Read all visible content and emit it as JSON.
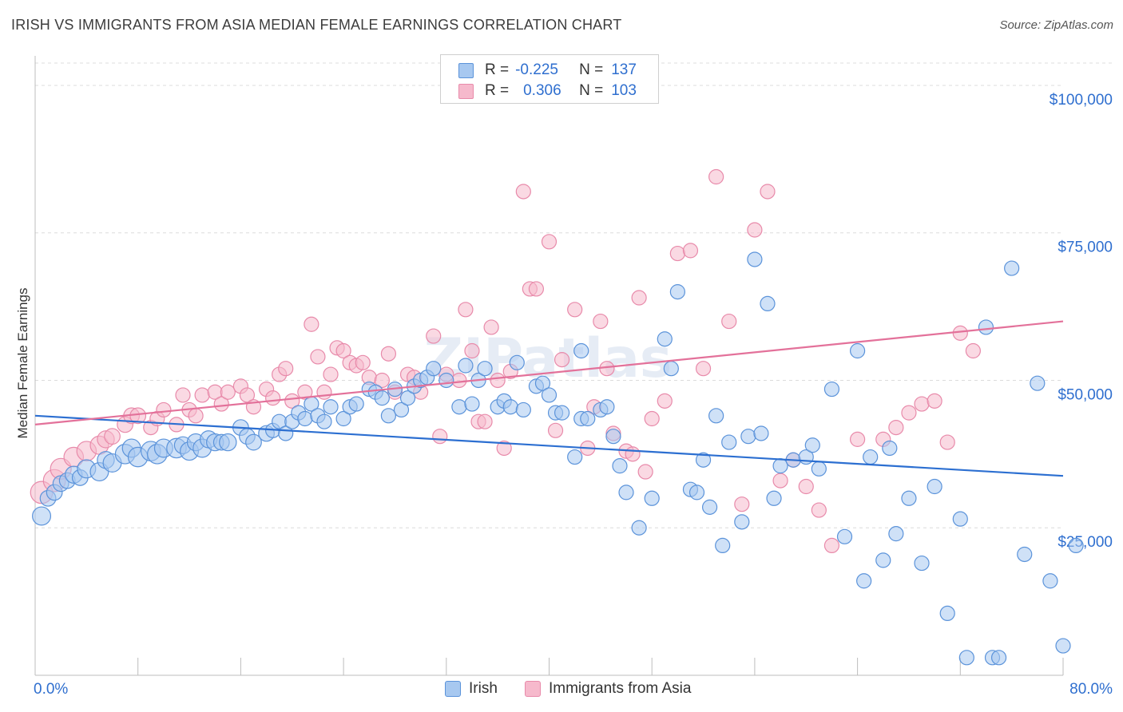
{
  "header": {
    "title": "IRISH VS IMMIGRANTS FROM ASIA MEDIAN FEMALE EARNINGS CORRELATION CHART",
    "source": "Source: ZipAtlas.com"
  },
  "colors": {
    "irish_fill": "#a7c8f0",
    "irish_stroke": "#5b93da",
    "irish_line": "#2c6fd1",
    "asia_fill": "#f6b9cc",
    "asia_stroke": "#e88aaa",
    "asia_line": "#e3719a",
    "axis_label": "#2f6fcf",
    "grid": "#dcdcdc"
  },
  "stats_legend": {
    "rows": [
      {
        "r_label": "R =",
        "r_value": "-0.225",
        "n_label": "N =",
        "n_value": "137"
      },
      {
        "r_label": "R =",
        "r_value": "0.306",
        "n_label": "N =",
        "n_value": "103"
      }
    ]
  },
  "chart_data": {
    "type": "scatter",
    "title": "IRISH VS IMMIGRANTS FROM ASIA MEDIAN FEMALE EARNINGS CORRELATION CHART",
    "ylabel": "Median Female Earnings",
    "xlabel": "",
    "xlim": [
      0,
      80
    ],
    "ylim": [
      0,
      105000
    ],
    "x_tick_labels": [
      "0.0%",
      "80.0%"
    ],
    "y_ticks": [
      25000,
      50000,
      75000,
      100000
    ],
    "y_tick_labels": [
      "$25,000",
      "$50,000",
      "$75,000",
      "$100,000"
    ],
    "grid": "horizontal dashed",
    "legend": [
      "Irish",
      "Immigrants from Asia"
    ],
    "watermark": "ZIPatlas",
    "series": [
      {
        "name": "Irish",
        "trend": {
          "x": [
            0,
            80
          ],
          "y": [
            44000,
            33800
          ]
        },
        "points": [
          [
            0.5,
            27000,
            13
          ],
          [
            1,
            30000,
            11
          ],
          [
            1.5,
            31000,
            11
          ],
          [
            2,
            32500,
            11
          ],
          [
            2.5,
            33000,
            11
          ],
          [
            3,
            34000,
            12
          ],
          [
            3.5,
            33500,
            11
          ],
          [
            4,
            35000,
            13
          ],
          [
            5,
            34500,
            13
          ],
          [
            5.5,
            36500,
            12
          ],
          [
            6,
            36000,
            13
          ],
          [
            7,
            37500,
            14
          ],
          [
            7.5,
            38500,
            13
          ],
          [
            8,
            37000,
            14
          ],
          [
            9,
            38000,
            14
          ],
          [
            9.5,
            37500,
            14
          ],
          [
            10,
            38500,
            13
          ],
          [
            11,
            38500,
            14
          ],
          [
            11.5,
            39000,
            12
          ],
          [
            12,
            38000,
            13
          ],
          [
            12.5,
            39500,
            12
          ],
          [
            13,
            38500,
            13
          ],
          [
            13.5,
            40000,
            12
          ],
          [
            14,
            39500,
            12
          ],
          [
            14.5,
            39500,
            11
          ],
          [
            15,
            39500,
            12
          ],
          [
            16,
            42000,
            11
          ],
          [
            16.5,
            40500,
            11
          ],
          [
            17,
            39500,
            11
          ],
          [
            18,
            41000,
            11
          ],
          [
            18.5,
            41500,
            10
          ],
          [
            19,
            43000,
            10
          ],
          [
            19.5,
            41000,
            10
          ],
          [
            20,
            43000,
            10
          ],
          [
            20.5,
            44500,
            10
          ],
          [
            21,
            43500,
            10
          ],
          [
            21.5,
            46000,
            10
          ],
          [
            22,
            44000,
            10
          ],
          [
            22.5,
            43000,
            10
          ],
          [
            23,
            45500,
            10
          ],
          [
            24,
            43500,
            10
          ],
          [
            24.5,
            45500,
            10
          ],
          [
            25,
            46000,
            10
          ],
          [
            26,
            48500,
            10
          ],
          [
            26.5,
            48000,
            10
          ],
          [
            27,
            47000,
            10
          ],
          [
            27.5,
            44000,
            10
          ],
          [
            28,
            48500,
            10
          ],
          [
            28.5,
            45000,
            10
          ],
          [
            29,
            47000,
            10
          ],
          [
            29.5,
            49000,
            10
          ],
          [
            30,
            50000,
            10
          ],
          [
            30.5,
            50500,
            10
          ],
          [
            31,
            52000,
            10
          ],
          [
            32,
            50000,
            10
          ],
          [
            33,
            45500,
            10
          ],
          [
            33.5,
            52500,
            10
          ],
          [
            34,
            46000,
            10
          ],
          [
            34.5,
            50000,
            10
          ],
          [
            35,
            52000,
            10
          ],
          [
            36,
            45500,
            10
          ],
          [
            36.5,
            46500,
            10
          ],
          [
            37,
            45500,
            10
          ],
          [
            37.5,
            53000,
            10
          ],
          [
            38,
            45000,
            10
          ],
          [
            39,
            49000,
            10
          ],
          [
            39.5,
            49500,
            10
          ],
          [
            40,
            47500,
            10
          ],
          [
            40.5,
            44500,
            10
          ],
          [
            41,
            44500,
            10
          ],
          [
            42,
            37000,
            10
          ],
          [
            42.5,
            55000,
            10
          ],
          [
            42.5,
            43500,
            10
          ],
          [
            43,
            43500,
            10
          ],
          [
            44,
            45000,
            10
          ],
          [
            44.5,
            45500,
            10
          ],
          [
            45,
            40500,
            10
          ],
          [
            45.5,
            35500,
            10
          ],
          [
            46,
            31000,
            10
          ],
          [
            47,
            25000,
            10
          ],
          [
            48,
            30000,
            10
          ],
          [
            49,
            57000,
            10
          ],
          [
            49.5,
            52000,
            10
          ],
          [
            50,
            65000,
            10
          ],
          [
            51,
            31500,
            10
          ],
          [
            51.5,
            31000,
            10
          ],
          [
            52,
            36500,
            10
          ],
          [
            52.5,
            28500,
            10
          ],
          [
            53,
            44000,
            10
          ],
          [
            53.5,
            22000,
            10
          ],
          [
            54,
            39500,
            10
          ],
          [
            55,
            26000,
            10
          ],
          [
            55.5,
            40500,
            10
          ],
          [
            56,
            70500,
            10
          ],
          [
            56.5,
            41000,
            10
          ],
          [
            57,
            63000,
            10
          ],
          [
            57.5,
            30000,
            10
          ],
          [
            58,
            35500,
            10
          ],
          [
            59,
            36500,
            10
          ],
          [
            60,
            37000,
            10
          ],
          [
            60.5,
            39000,
            10
          ],
          [
            61,
            35000,
            10
          ],
          [
            62,
            48500,
            10
          ],
          [
            63,
            23500,
            10
          ],
          [
            64,
            55000,
            10
          ],
          [
            64.5,
            16000,
            10
          ],
          [
            65,
            37000,
            10
          ],
          [
            66,
            19500,
            10
          ],
          [
            66.5,
            38500,
            10
          ],
          [
            67,
            24000,
            10
          ],
          [
            68,
            30000,
            10
          ],
          [
            69,
            19000,
            10
          ],
          [
            70,
            32000,
            10
          ],
          [
            71,
            10500,
            10
          ],
          [
            72,
            26500,
            10
          ],
          [
            72.5,
            3000,
            10
          ],
          [
            74,
            59000,
            10
          ],
          [
            74.5,
            3000,
            10
          ],
          [
            75,
            3000,
            10
          ],
          [
            76,
            69000,
            10
          ],
          [
            77,
            20500,
            10
          ],
          [
            78,
            49500,
            10
          ],
          [
            79,
            16000,
            10
          ],
          [
            80,
            5000,
            10
          ],
          [
            81,
            22000,
            10
          ]
        ]
      },
      {
        "name": "Immigrants from Asia",
        "trend": {
          "x": [
            0,
            80
          ],
          "y": [
            42500,
            60000
          ]
        },
        "points": [
          [
            0.5,
            31000,
            16
          ],
          [
            1.5,
            33000,
            16
          ],
          [
            2,
            35000,
            15
          ],
          [
            3,
            37000,
            14
          ],
          [
            4,
            38000,
            14
          ],
          [
            5,
            39000,
            13
          ],
          [
            5.5,
            40000,
            12
          ],
          [
            6,
            40500,
            11
          ],
          [
            7,
            42500,
            11
          ],
          [
            7.5,
            44000,
            11
          ],
          [
            8,
            44000,
            11
          ],
          [
            9,
            42000,
            10
          ],
          [
            9.5,
            43500,
            10
          ],
          [
            10,
            45000,
            10
          ],
          [
            11,
            42500,
            10
          ],
          [
            11.5,
            47500,
            10
          ],
          [
            12,
            45000,
            10
          ],
          [
            12.5,
            44000,
            10
          ],
          [
            13,
            47500,
            10
          ],
          [
            14,
            48000,
            10
          ],
          [
            14.5,
            46000,
            10
          ],
          [
            15,
            48000,
            10
          ],
          [
            16,
            49000,
            10
          ],
          [
            16.5,
            47500,
            10
          ],
          [
            17,
            45500,
            10
          ],
          [
            18,
            48500,
            10
          ],
          [
            18.5,
            47000,
            10
          ],
          [
            19,
            51000,
            10
          ],
          [
            19.5,
            52000,
            10
          ],
          [
            20,
            46500,
            10
          ],
          [
            21,
            48000,
            10
          ],
          [
            21.5,
            59500,
            10
          ],
          [
            22,
            54000,
            10
          ],
          [
            22.5,
            48000,
            10
          ],
          [
            23,
            51000,
            10
          ],
          [
            23.5,
            55500,
            10
          ],
          [
            24,
            55000,
            10
          ],
          [
            24.5,
            53000,
            10
          ],
          [
            25,
            52500,
            10
          ],
          [
            25.5,
            53000,
            10
          ],
          [
            26,
            50500,
            10
          ],
          [
            27,
            50000,
            10
          ],
          [
            27.5,
            54500,
            10
          ],
          [
            28,
            48000,
            10
          ],
          [
            29,
            51000,
            10
          ],
          [
            29.5,
            50500,
            10
          ],
          [
            30,
            48000,
            10
          ],
          [
            31,
            57500,
            10
          ],
          [
            31.5,
            40500,
            10
          ],
          [
            32,
            51000,
            10
          ],
          [
            33,
            50000,
            10
          ],
          [
            33.5,
            62000,
            10
          ],
          [
            34,
            55000,
            10
          ],
          [
            34.5,
            43000,
            10
          ],
          [
            35,
            43000,
            10
          ],
          [
            35.5,
            59000,
            10
          ],
          [
            36,
            50000,
            10
          ],
          [
            36.5,
            38500,
            10
          ],
          [
            37,
            51500,
            10
          ],
          [
            38,
            82000,
            10
          ],
          [
            38.5,
            65500,
            10
          ],
          [
            39,
            65500,
            10
          ],
          [
            40,
            73500,
            10
          ],
          [
            40.5,
            41500,
            10
          ],
          [
            41,
            53500,
            10
          ],
          [
            42,
            62000,
            10
          ],
          [
            43,
            38500,
            10
          ],
          [
            43.5,
            45500,
            10
          ],
          [
            44,
            60000,
            10
          ],
          [
            44.5,
            52000,
            10
          ],
          [
            45,
            41000,
            10
          ],
          [
            46,
            38000,
            10
          ],
          [
            46.5,
            37500,
            10
          ],
          [
            47,
            64000,
            10
          ],
          [
            47.5,
            34500,
            10
          ],
          [
            48,
            43500,
            10
          ],
          [
            49,
            46500,
            10
          ],
          [
            50,
            71500,
            10
          ],
          [
            51,
            72000,
            10
          ],
          [
            52,
            52000,
            10
          ],
          [
            53,
            84500,
            10
          ],
          [
            54,
            60000,
            10
          ],
          [
            55,
            29000,
            10
          ],
          [
            56,
            75500,
            10
          ],
          [
            57,
            82000,
            10
          ],
          [
            58,
            33000,
            10
          ],
          [
            59,
            36500,
            10
          ],
          [
            60,
            32000,
            10
          ],
          [
            61,
            28000,
            10
          ],
          [
            62,
            22000,
            10
          ],
          [
            64,
            40000,
            10
          ],
          [
            66,
            40000,
            10
          ],
          [
            67,
            42000,
            10
          ],
          [
            68,
            44500,
            10
          ],
          [
            69,
            46000,
            10
          ],
          [
            70,
            46500,
            10
          ],
          [
            71,
            39500,
            10
          ],
          [
            72,
            58000,
            10
          ],
          [
            73,
            55000,
            10
          ]
        ]
      }
    ]
  }
}
